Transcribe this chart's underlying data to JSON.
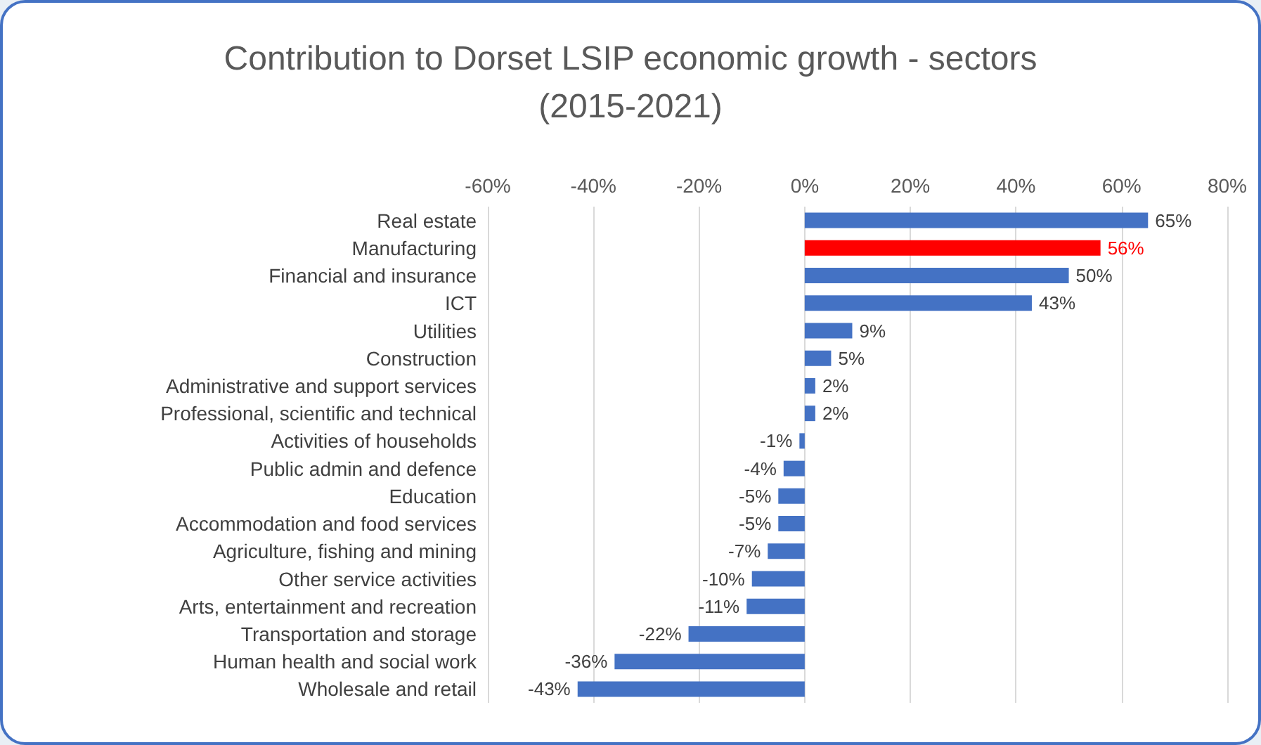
{
  "chart_data": {
    "type": "bar",
    "orientation": "horizontal",
    "title": "Contribution to Dorset LSIP economic growth - sectors\n(2015-2021)",
    "categories": [
      "Real estate",
      "Manufacturing",
      "Financial and insurance",
      "ICT",
      "Utilities",
      "Construction",
      "Administrative and support services",
      "Professional, scientific and technical",
      "Activities of households",
      "Public admin and defence",
      "Education",
      "Accommodation and food services",
      "Agriculture, fishing and mining",
      "Other service activities",
      "Arts, entertainment and recreation",
      "Transportation and storage",
      "Human health and social work",
      "Wholesale and retail"
    ],
    "values": [
      65,
      56,
      50,
      43,
      9,
      5,
      2,
      2,
      -1,
      -4,
      -5,
      -5,
      -7,
      -10,
      -11,
      -22,
      -36,
      -43
    ],
    "value_labels": [
      "65%",
      "56%",
      "50%",
      "43%",
      "9%",
      "5%",
      "2%",
      "2%",
      "-1%",
      "-4%",
      "-5%",
      "-5%",
      "-7%",
      "-10%",
      "-11%",
      "-22%",
      "-36%",
      "-43%"
    ],
    "colors": [
      "#4472c4",
      "#ff0000",
      "#4472c4",
      "#4472c4",
      "#4472c4",
      "#4472c4",
      "#4472c4",
      "#4472c4",
      "#4472c4",
      "#4472c4",
      "#4472c4",
      "#4472c4",
      "#4472c4",
      "#4472c4",
      "#4472c4",
      "#4472c4",
      "#4472c4",
      "#4472c4"
    ],
    "xlim": [
      -60,
      80
    ],
    "xticks": [
      {
        "value": -60,
        "label": "-60%"
      },
      {
        "value": -40,
        "label": "-40%"
      },
      {
        "value": -20,
        "label": "-20%"
      },
      {
        "value": 0,
        "label": "0%"
      },
      {
        "value": 20,
        "label": "20%"
      },
      {
        "value": 40,
        "label": "40%"
      },
      {
        "value": 60,
        "label": "60%"
      },
      {
        "value": 80,
        "label": "80%"
      }
    ],
    "grid": "x"
  }
}
